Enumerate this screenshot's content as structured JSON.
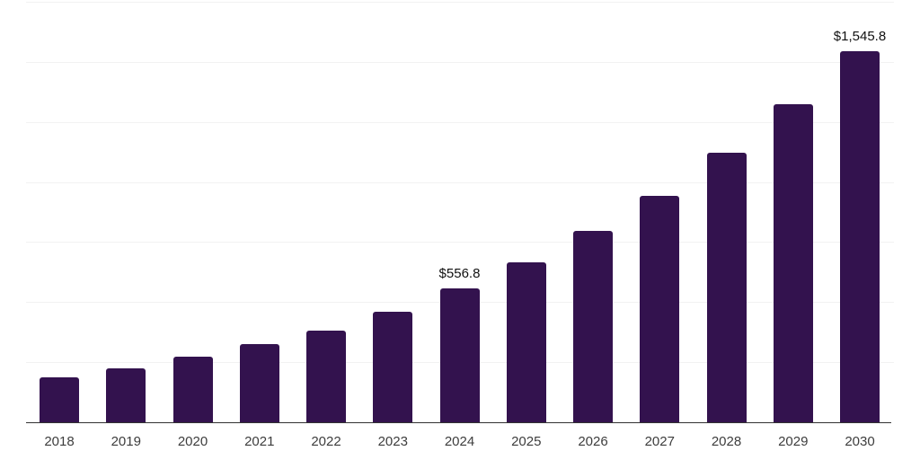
{
  "chart_data": {
    "type": "bar",
    "title": "",
    "xlabel": "",
    "ylabel": "",
    "categories": [
      "2018",
      "2019",
      "2020",
      "2021",
      "2022",
      "2023",
      "2024",
      "2025",
      "2026",
      "2027",
      "2028",
      "2029",
      "2030"
    ],
    "values": [
      187,
      224,
      272,
      324,
      381,
      459,
      556.8,
      666,
      795,
      944,
      1120,
      1322,
      1545.8
    ],
    "data_labels": {
      "2024": "$556.8",
      "2030": "$1,545.8"
    },
    "ylim": [
      0,
      1750
    ],
    "gridline_step": 250,
    "grid": true,
    "y_tick_labels_visible": false,
    "legend": "none",
    "colors": {
      "bar": "#33124e",
      "grid": "#f2f2f2",
      "axis": "#333333",
      "tick_label": "#3d3d3d",
      "data_label": "#111111",
      "background": "#ffffff"
    }
  }
}
